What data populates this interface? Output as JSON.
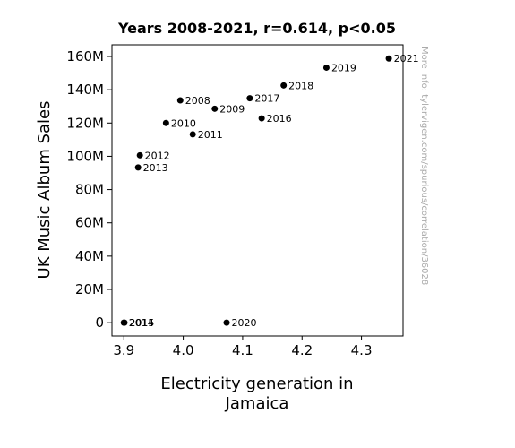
{
  "chart_data": {
    "type": "scatter",
    "title": "Years 2008-2021, r=0.614, p<0.05",
    "xlabel_lines": [
      "Electricity generation in",
      "Jamaica"
    ],
    "ylabel": "UK Music Album Sales",
    "watermark": "More info: tylervigen.com/spurious/correlation/36028",
    "xlim": [
      3.88,
      4.37
    ],
    "ylim": [
      -8000000,
      167000000
    ],
    "x_ticks": [
      {
        "value": 3.9,
        "label": "3.9"
      },
      {
        "value": 4.0,
        "label": "4.0"
      },
      {
        "value": 4.1,
        "label": "4.1"
      },
      {
        "value": 4.2,
        "label": "4.2"
      },
      {
        "value": 4.3,
        "label": "4.3"
      }
    ],
    "y_ticks": [
      {
        "value": 0,
        "label": "0"
      },
      {
        "value": 20000000,
        "label": "20M"
      },
      {
        "value": 40000000,
        "label": "40M"
      },
      {
        "value": 60000000,
        "label": "60M"
      },
      {
        "value": 80000000,
        "label": "80M"
      },
      {
        "value": 100000000,
        "label": "100M"
      },
      {
        "value": 120000000,
        "label": "120M"
      },
      {
        "value": 140000000,
        "label": "140M"
      },
      {
        "value": 160000000,
        "label": "160M"
      }
    ],
    "grid": false,
    "marker_color": "#000000",
    "points": [
      {
        "label": "2008",
        "x": 3.995,
        "y": 133600000
      },
      {
        "label": "2009",
        "x": 4.053,
        "y": 128600000
      },
      {
        "label": "2010",
        "x": 3.971,
        "y": 120000000
      },
      {
        "label": "2011",
        "x": 4.016,
        "y": 113200000
      },
      {
        "label": "2012",
        "x": 3.927,
        "y": 100600000
      },
      {
        "label": "2013",
        "x": 3.924,
        "y": 93300000
      },
      {
        "label": "2014",
        "x": 3.9,
        "y": 0
      },
      {
        "label": "2015",
        "x": 3.901,
        "y": 0
      },
      {
        "label": "2016",
        "x": 4.132,
        "y": 122800000
      },
      {
        "label": "2017",
        "x": 4.112,
        "y": 134900000
      },
      {
        "label": "2018",
        "x": 4.169,
        "y": 142600000
      },
      {
        "label": "2019",
        "x": 4.241,
        "y": 153300000
      },
      {
        "label": "2020",
        "x": 4.073,
        "y": 0
      },
      {
        "label": "2021",
        "x": 4.346,
        "y": 158800000
      }
    ]
  }
}
